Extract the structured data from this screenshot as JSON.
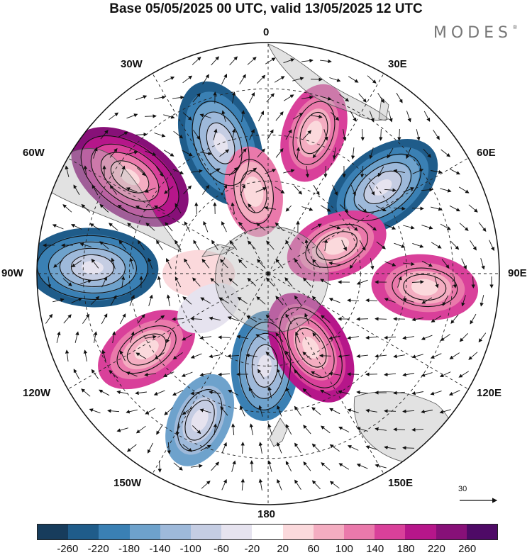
{
  "title": "Base 05/05/2025 00 UTC, valid 13/05/2025 12 UTC",
  "logo": "MODES",
  "logo_mark": "®",
  "longitude_labels": {
    "l0": "0",
    "l30e": "30E",
    "l60e": "60E",
    "l90e": "90E",
    "l120e": "120E",
    "l150e": "150E",
    "l180": "180",
    "l150w": "150W",
    "l120w": "120W",
    "l90w": "90W",
    "l60w": "60W",
    "l30w": "30W"
  },
  "reference_vector": "30",
  "colorbar": {
    "colors": [
      "#173c5c",
      "#1f5c8a",
      "#3a80b4",
      "#6ea2cc",
      "#9eb9da",
      "#c5cde3",
      "#e6e3ef",
      "#ffffff",
      "#fbd9dc",
      "#f4adc1",
      "#ea79ab",
      "#d9409a",
      "#b6168a",
      "#871078",
      "#4e0a66"
    ],
    "labels": [
      "-260",
      "-220",
      "-180",
      "-140",
      "-100",
      "-60",
      "-20",
      "20",
      "60",
      "100",
      "140",
      "180",
      "220",
      "260"
    ]
  },
  "anomalies": [
    {
      "name": "sign-neg",
      "value": -240,
      "lon": -20,
      "r": 0.6
    },
    {
      "name": "sign-pos",
      "value": 250,
      "lon": -55,
      "r": 0.73
    },
    {
      "name": "sign-neg",
      "value": -250,
      "lon": -88,
      "r": 0.76
    },
    {
      "name": "sign-pos",
      "value": 170,
      "lon": -122,
      "r": 0.62
    },
    {
      "name": "sign-neg",
      "value": -140,
      "lon": -155,
      "r": 0.7
    },
    {
      "name": "sign-neg",
      "value": -180,
      "lon": -178,
      "r": 0.4
    },
    {
      "name": "sign-pos",
      "value": 210,
      "lon": 150,
      "r": 0.37
    },
    {
      "name": "sign-pos",
      "value": 170,
      "lon": 95,
      "r": 0.68
    },
    {
      "name": "sign-neg",
      "value": -230,
      "lon": 53,
      "r": 0.62
    },
    {
      "name": "sign-pos",
      "value": 160,
      "lon": 68,
      "r": 0.32
    },
    {
      "name": "sign-pos",
      "value": 150,
      "lon": 18,
      "r": 0.64
    },
    {
      "name": "sign-pos",
      "value": 120,
      "lon": -10,
      "r": 0.36
    },
    {
      "name": "sign-pos",
      "value": 60,
      "lon": -90,
      "r": 0.3
    },
    {
      "name": "sign-neg",
      "value": -40,
      "lon": -120,
      "r": 0.3
    }
  ]
}
